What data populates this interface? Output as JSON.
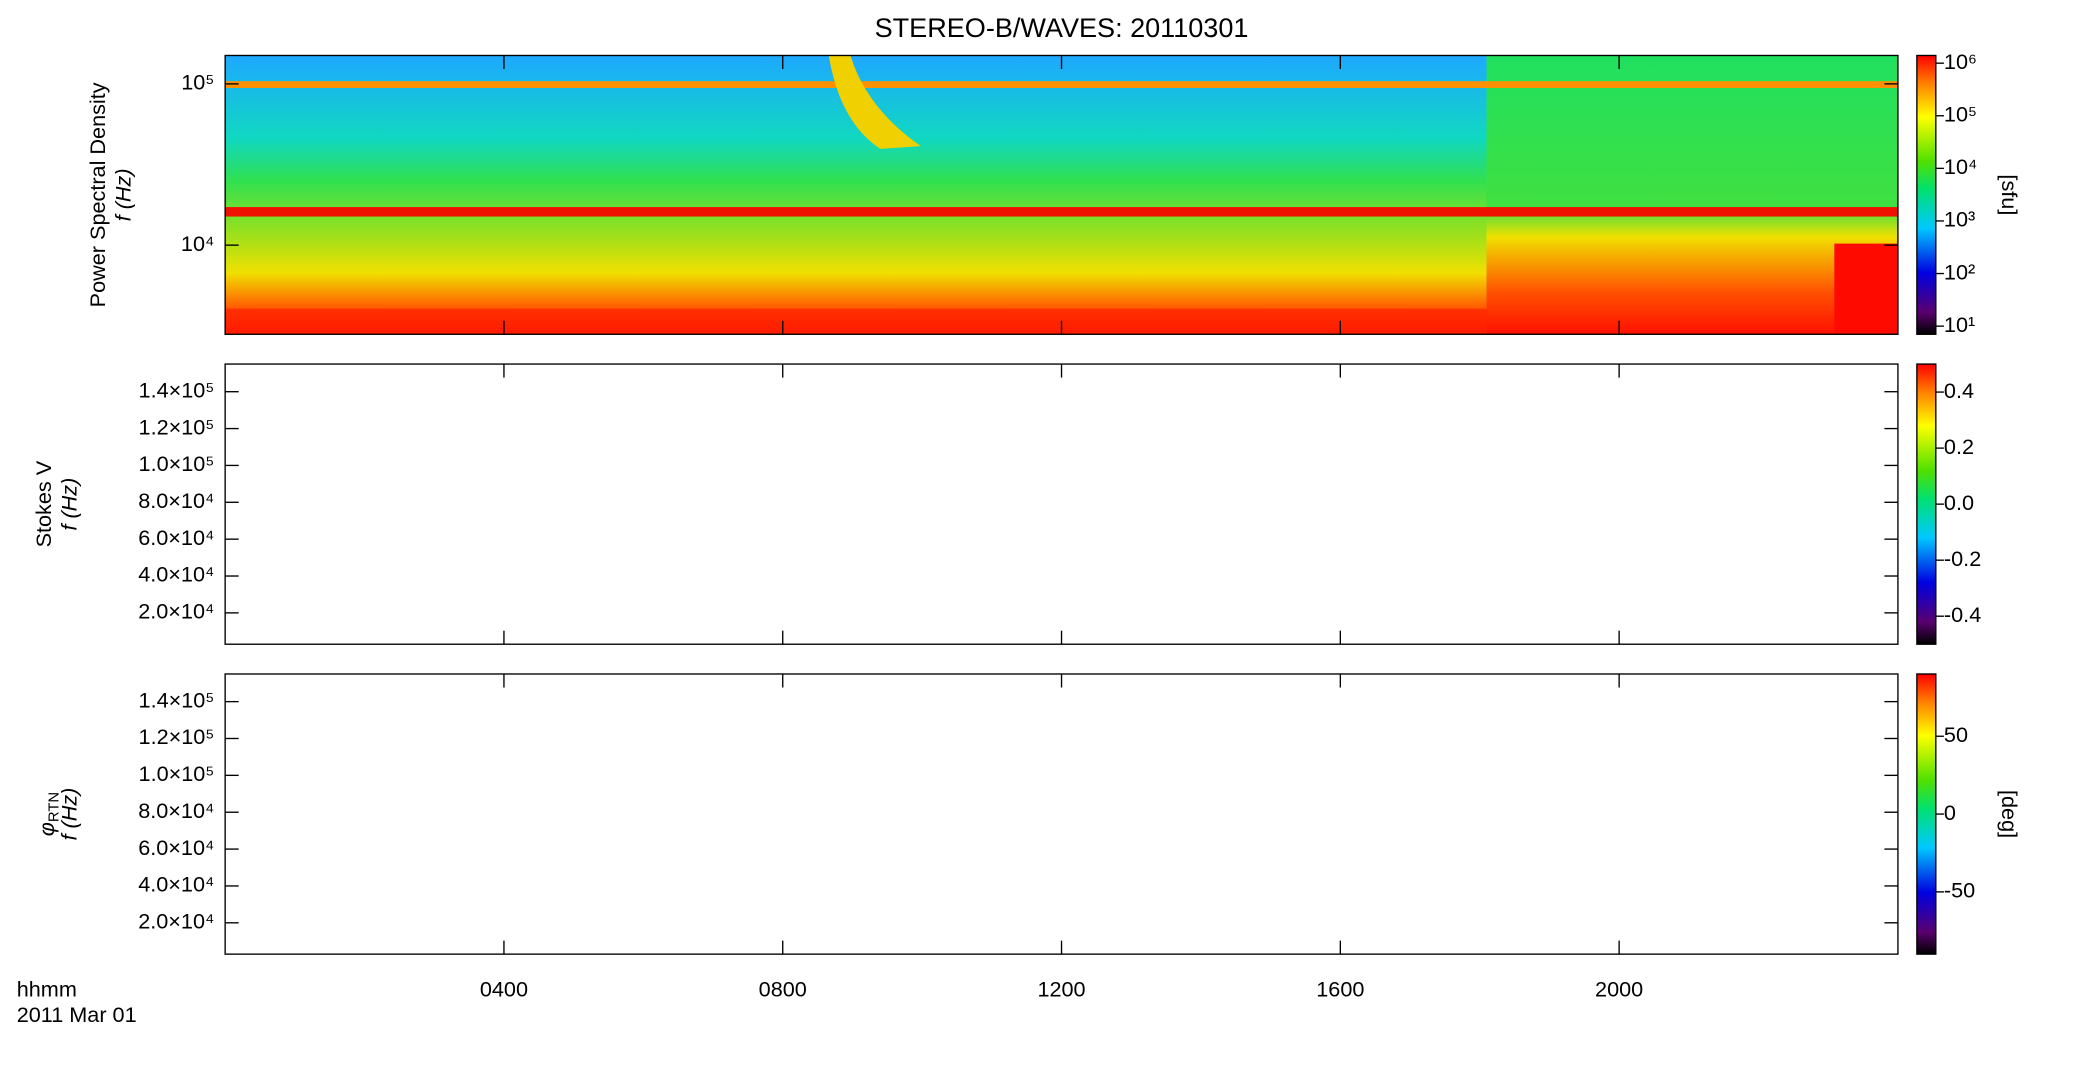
{
  "chart_data": {
    "type": "heatmap",
    "title": "STEREO-B/WAVES: 20110301",
    "xlabel_lines": [
      "hhmm",
      "2011 Mar 01"
    ],
    "xlim": [
      0,
      24
    ],
    "xticks": [
      {
        "value": 4,
        "label": "0400"
      },
      {
        "value": 8,
        "label": "0800"
      },
      {
        "value": 12,
        "label": "1200"
      },
      {
        "value": 16,
        "label": "1600"
      },
      {
        "value": 20,
        "label": "2000"
      }
    ],
    "panels": [
      {
        "ylabel_top": "Power Spectral Density",
        "ylabel": "f (Hz)",
        "ylog": true,
        "ylim": [
          2800,
          150000
        ],
        "yticks": [
          {
            "value": 10000,
            "label": "10⁴"
          },
          {
            "value": 100000,
            "label": "10⁵"
          }
        ],
        "colorbar": {
          "log": true,
          "clim": [
            7,
            1400000
          ],
          "label": "[sfu]",
          "ticks": [
            {
              "value": 10,
              "label": "10¹"
            },
            {
              "value": 100,
              "label": "10²"
            },
            {
              "value": 1000,
              "label": "10³"
            },
            {
              "value": 10000,
              "label": "10⁴"
            },
            {
              "value": 100000,
              "label": "10⁵"
            },
            {
              "value": 1000000,
              "label": "10⁶"
            }
          ]
        }
      },
      {
        "ylabel_top": "Stokes V",
        "ylabel": "f (Hz)",
        "ylog": false,
        "ylim": [
          3000,
          155000
        ],
        "yticks": [
          {
            "value": 20000,
            "label": "2.0×10⁴"
          },
          {
            "value": 40000,
            "label": "4.0×10⁴"
          },
          {
            "value": 60000,
            "label": "6.0×10⁴"
          },
          {
            "value": 80000,
            "label": "8.0×10⁴"
          },
          {
            "value": 100000,
            "label": "1.0×10⁵"
          },
          {
            "value": 120000,
            "label": "1.2×10⁵"
          },
          {
            "value": 140000,
            "label": "1.4×10⁵"
          }
        ],
        "colorbar": {
          "log": false,
          "clim": [
            -0.5,
            0.5
          ],
          "ticks": [
            {
              "value": -0.4,
              "label": "-0.4"
            },
            {
              "value": -0.2,
              "label": "-0.2"
            },
            {
              "value": 0,
              "label": "0.0"
            },
            {
              "value": 0.2,
              "label": "0.2"
            },
            {
              "value": 0.4,
              "label": "0.4"
            }
          ]
        }
      },
      {
        "ylabel_symbol": "φ",
        "ylabel_subscript": "RTN",
        "ylabel": "f (Hz)",
        "ylog": false,
        "ylim": [
          3000,
          155000
        ],
        "yticks": [
          {
            "value": 20000,
            "label": "2.0×10⁴"
          },
          {
            "value": 40000,
            "label": "4.0×10⁴"
          },
          {
            "value": 60000,
            "label": "6.0×10⁴"
          },
          {
            "value": 80000,
            "label": "8.0×10⁴"
          },
          {
            "value": 100000,
            "label": "1.0×10⁵"
          },
          {
            "value": 120000,
            "label": "1.2×10⁵"
          },
          {
            "value": 140000,
            "label": "1.4×10⁵"
          }
        ],
        "colorbar": {
          "log": false,
          "clim": [
            -90,
            90
          ],
          "label": "[deg]",
          "ticks": [
            -50,
            0,
            50
          ]
        }
      }
    ]
  }
}
